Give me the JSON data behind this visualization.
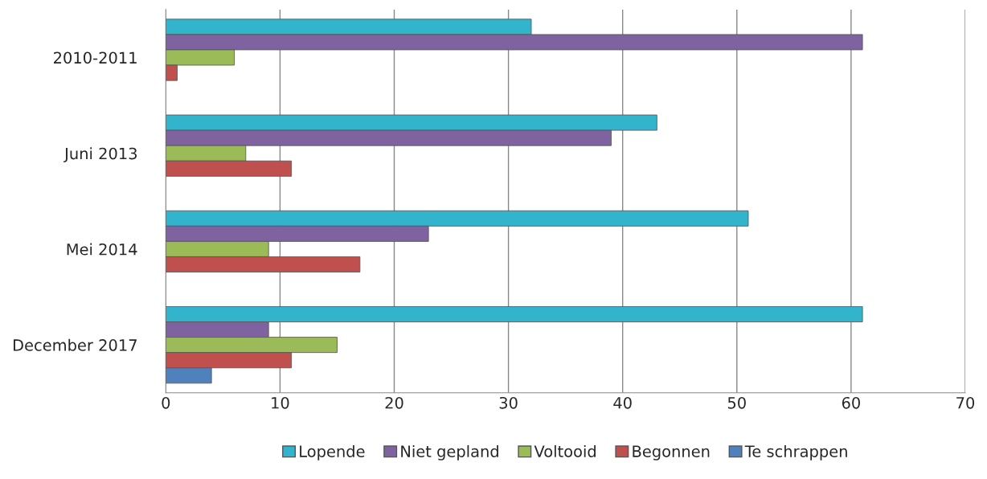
{
  "chart_data": {
    "type": "bar",
    "orientation": "horizontal",
    "categories": [
      "2010-2011",
      "Juni 2013",
      "Mei 2014",
      "December 2017"
    ],
    "series": [
      {
        "name": "Lopende",
        "color": "#31b4cc",
        "values": [
          32,
          43,
          51,
          61
        ]
      },
      {
        "name": "Niet gepland",
        "color": "#7f63a1",
        "values": [
          61,
          39,
          23,
          9
        ]
      },
      {
        "name": "Voltooid",
        "color": "#9bbb59",
        "values": [
          6,
          7,
          9,
          15
        ]
      },
      {
        "name": "Begonnen",
        "color": "#c0504d",
        "values": [
          1,
          11,
          17,
          11
        ]
      },
      {
        "name": "Te schrappen",
        "color": "#4f81bd",
        "values": [
          null,
          null,
          null,
          4
        ]
      }
    ],
    "xlim": [
      0,
      70
    ],
    "xticks": [
      0,
      10,
      20,
      30,
      40,
      50,
      60,
      70
    ],
    "grid": "x",
    "legend": "bottom"
  }
}
